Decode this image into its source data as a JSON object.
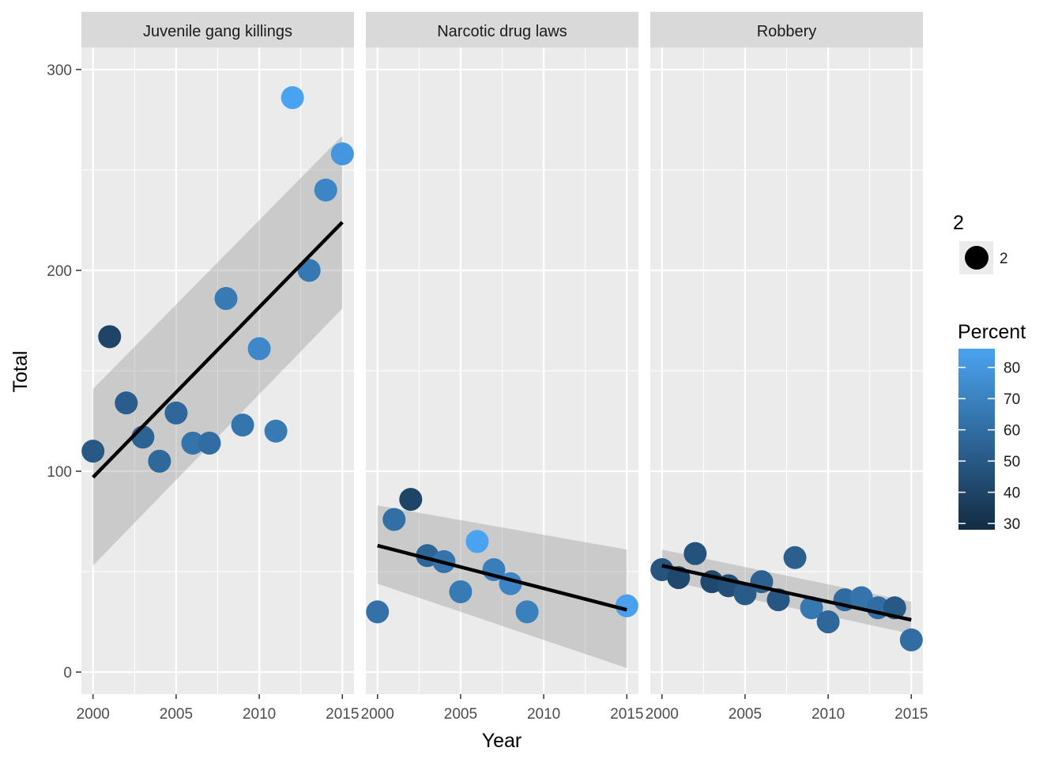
{
  "chart_data": {
    "type": "scatter",
    "facet_var": "Crime",
    "x_axis": {
      "label": "Year",
      "range": [
        1999.3,
        2015.7
      ],
      "ticks": [
        "2000",
        "2005",
        "2010",
        "2015"
      ]
    },
    "y_axis": {
      "label": "Total",
      "range": [
        -11,
        311
      ],
      "ticks": [
        "0",
        "100",
        "200",
        "300"
      ]
    },
    "grid": true,
    "panels": [
      {
        "title": "Juvenile gang killings",
        "points": [
          {
            "year": 2000,
            "total": 110,
            "percent": 50
          },
          {
            "year": 2001,
            "total": 167,
            "percent": 40
          },
          {
            "year": 2002,
            "total": 134,
            "percent": 52
          },
          {
            "year": 2003,
            "total": 117,
            "percent": 55
          },
          {
            "year": 2004,
            "total": 105,
            "percent": 58
          },
          {
            "year": 2005,
            "total": 129,
            "percent": 57
          },
          {
            "year": 2006,
            "total": 114,
            "percent": 63
          },
          {
            "year": 2007,
            "total": 114,
            "percent": 60
          },
          {
            "year": 2008,
            "total": 186,
            "percent": 66
          },
          {
            "year": 2009,
            "total": 123,
            "percent": 64
          },
          {
            "year": 2010,
            "total": 161,
            "percent": 73
          },
          {
            "year": 2011,
            "total": 120,
            "percent": 66
          },
          {
            "year": 2012,
            "total": 286,
            "percent": 86
          },
          {
            "year": 2013,
            "total": 200,
            "percent": 65
          },
          {
            "year": 2014,
            "total": 240,
            "percent": 72
          },
          {
            "year": 2015,
            "total": 258,
            "percent": 80
          }
        ],
        "fit": {
          "start": [
            2000,
            97
          ],
          "end": [
            2015,
            224
          ]
        },
        "band": {
          "upper": [
            141,
            267
          ],
          "lower": [
            53,
            181
          ]
        }
      },
      {
        "title": "Narcotic drug laws",
        "points": [
          {
            "year": 2000,
            "total": 30,
            "percent": 62
          },
          {
            "year": 2001,
            "total": 76,
            "percent": 61
          },
          {
            "year": 2002,
            "total": 86,
            "percent": 40
          },
          {
            "year": 2003,
            "total": 58,
            "percent": 56
          },
          {
            "year": 2004,
            "total": 55,
            "percent": 63
          },
          {
            "year": 2005,
            "total": 40,
            "percent": 66
          },
          {
            "year": 2006,
            "total": 65,
            "percent": 86
          },
          {
            "year": 2007,
            "total": 51,
            "percent": 68
          },
          {
            "year": 2008,
            "total": 44,
            "percent": 71
          },
          {
            "year": 2009,
            "total": 30,
            "percent": 69
          },
          {
            "year": 2015,
            "total": 33,
            "percent": 85
          }
        ],
        "fit": {
          "start": [
            2000,
            63
          ],
          "end": [
            2015,
            31
          ]
        },
        "band": {
          "upper": [
            83,
            61
          ],
          "lower": [
            44,
            2
          ]
        }
      },
      {
        "title": "Robbery",
        "points": [
          {
            "year": 2000,
            "total": 51,
            "percent": 48
          },
          {
            "year": 2001,
            "total": 47,
            "percent": 42
          },
          {
            "year": 2002,
            "total": 59,
            "percent": 47
          },
          {
            "year": 2003,
            "total": 45,
            "percent": 42
          },
          {
            "year": 2004,
            "total": 43,
            "percent": 45
          },
          {
            "year": 2005,
            "total": 39,
            "percent": 51
          },
          {
            "year": 2006,
            "total": 45,
            "percent": 54
          },
          {
            "year": 2007,
            "total": 36,
            "percent": 49
          },
          {
            "year": 2008,
            "total": 57,
            "percent": 53
          },
          {
            "year": 2009,
            "total": 32,
            "percent": 65
          },
          {
            "year": 2010,
            "total": 25,
            "percent": 57
          },
          {
            "year": 2011,
            "total": 36,
            "percent": 59
          },
          {
            "year": 2012,
            "total": 37,
            "percent": 63
          },
          {
            "year": 2013,
            "total": 32,
            "percent": 60
          },
          {
            "year": 2014,
            "total": 32,
            "percent": 50
          },
          {
            "year": 2015,
            "total": 16,
            "percent": 60
          }
        ],
        "fit": {
          "start": [
            2000,
            53
          ],
          "end": [
            2015,
            26
          ]
        },
        "band": {
          "upper": [
            61,
            35
          ],
          "lower": [
            46,
            19
          ]
        }
      }
    ],
    "fit_line_color": "#000000",
    "band_color": "#999999",
    "legends": {
      "size": {
        "title": "2",
        "label": "2"
      },
      "color": {
        "title": "Percent",
        "range": [
          28,
          86
        ],
        "breaks": [
          "80",
          "70",
          "60",
          "50",
          "40",
          "30"
        ],
        "low_color": "#132B43",
        "high_color": "#4AA3F0"
      }
    }
  }
}
